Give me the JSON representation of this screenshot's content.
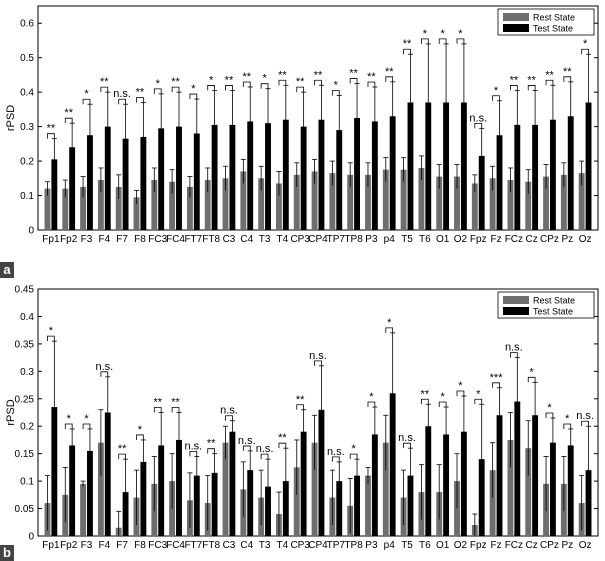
{
  "colors": {
    "rest": "#6e6e6e",
    "test": "#000000",
    "panel_tag_bg": "#444444"
  },
  "chart_data": [
    {
      "panel": "a",
      "type": "bar",
      "ylabel": "rPSD",
      "ylim": [
        0,
        0.65
      ],
      "yticks": [
        "0",
        "0.1",
        "0.2",
        "0.3",
        "0.4",
        "0.5",
        "0.6"
      ],
      "legend": [
        "Rest State",
        "Test State"
      ],
      "legend_position": "top-right",
      "categories": [
        "Fp1",
        "Fp2",
        "F3",
        "F4",
        "F7",
        "F8",
        "FC3",
        "FC4",
        "FT7",
        "FT8",
        "C3",
        "C4",
        "T3",
        "T4",
        "CP3",
        "CP4",
        "TP7",
        "TP8",
        "P3",
        "p4",
        "T5",
        "T6",
        "O1",
        "O2",
        "Fpz",
        "Fz",
        "FCz",
        "Cz",
        "CPz",
        "Pz",
        "Oz"
      ],
      "series": [
        {
          "name": "Rest State",
          "values": [
            0.12,
            0.12,
            0.125,
            0.145,
            0.125,
            0.095,
            0.145,
            0.14,
            0.125,
            0.145,
            0.15,
            0.17,
            0.15,
            0.135,
            0.16,
            0.17,
            0.165,
            0.16,
            0.16,
            0.175,
            0.175,
            0.18,
            0.155,
            0.155,
            0.135,
            0.15,
            0.145,
            0.14,
            0.155,
            0.16,
            0.165
          ],
          "errors": [
            0.02,
            0.025,
            0.03,
            0.035,
            0.035,
            0.02,
            0.035,
            0.035,
            0.03,
            0.035,
            0.035,
            0.035,
            0.035,
            0.035,
            0.035,
            0.035,
            0.035,
            0.035,
            0.035,
            0.035,
            0.035,
            0.035,
            0.035,
            0.035,
            0.025,
            0.035,
            0.035,
            0.035,
            0.035,
            0.035,
            0.035
          ]
        },
        {
          "name": "Test State",
          "values": [
            0.205,
            0.24,
            0.275,
            0.3,
            0.265,
            0.27,
            0.295,
            0.3,
            0.28,
            0.305,
            0.305,
            0.315,
            0.31,
            0.32,
            0.3,
            0.32,
            0.29,
            0.325,
            0.315,
            0.33,
            0.37,
            0.37,
            0.37,
            0.37,
            0.215,
            0.275,
            0.305,
            0.305,
            0.32,
            0.33,
            0.37
          ],
          "errors": [
            0.06,
            0.07,
            0.09,
            0.1,
            0.1,
            0.1,
            0.1,
            0.1,
            0.1,
            0.1,
            0.1,
            0.1,
            0.1,
            0.1,
            0.1,
            0.1,
            0.1,
            0.1,
            0.1,
            0.1,
            0.14,
            0.17,
            0.17,
            0.17,
            0.08,
            0.1,
            0.1,
            0.1,
            0.1,
            0.1,
            0.14
          ]
        }
      ],
      "significance": [
        "**",
        "**",
        "*",
        "**",
        "n.s.",
        "**",
        "*",
        "**",
        "*",
        "*",
        "**",
        "**",
        "*",
        "**",
        "**",
        "**",
        "*",
        "**",
        "**",
        "**",
        "**",
        "*",
        "*",
        "*",
        "n.s.",
        "*",
        "**",
        "**",
        "**",
        "**",
        "*"
      ]
    },
    {
      "panel": "b",
      "type": "bar",
      "ylabel": "rPSD",
      "ylim": [
        0,
        0.45
      ],
      "yticks": [
        "0",
        "0.05",
        "0.1",
        "0.15",
        "0.2",
        "0.25",
        "0.3",
        "0.35",
        "0.4",
        "0.45"
      ],
      "legend": [
        "Rest State",
        "Test State"
      ],
      "legend_position": "top-right",
      "categories": [
        "Fp1",
        "Fp2",
        "F3",
        "F4",
        "F7",
        "F8",
        "FC3",
        "FC4",
        "FT7",
        "FT8",
        "C3",
        "C4",
        "T3",
        "T4",
        "CP3",
        "CP4",
        "TP7",
        "TP8",
        "P3",
        "p4",
        "T5",
        "T6",
        "O1",
        "O2",
        "Fpz",
        "Fz",
        "FCz",
        "Cz",
        "CPz",
        "Pz",
        "Oz"
      ],
      "series": [
        {
          "name": "Rest State",
          "values": [
            0.06,
            0.075,
            0.095,
            0.17,
            0.015,
            0.07,
            0.095,
            0.1,
            0.065,
            0.06,
            0.17,
            0.085,
            0.07,
            0.04,
            0.125,
            0.17,
            0.07,
            0.055,
            0.11,
            0.17,
            0.07,
            0.08,
            0.08,
            0.1,
            0.02,
            0.12,
            0.175,
            0.16,
            0.095,
            0.095,
            0.06
          ],
          "errors": [
            0.05,
            0.05,
            0.005,
            0.06,
            0.03,
            0.05,
            0.05,
            0.05,
            0.05,
            0.05,
            0.03,
            0.05,
            0.05,
            0.04,
            0.05,
            0.05,
            0.05,
            0.05,
            0.015,
            0.05,
            0.05,
            0.05,
            0.05,
            0.05,
            0.02,
            0.05,
            0.05,
            0.05,
            0.05,
            0.05,
            0.05
          ]
        },
        {
          "name": "Test State",
          "values": [
            0.235,
            0.165,
            0.155,
            0.225,
            0.08,
            0.135,
            0.165,
            0.175,
            0.11,
            0.115,
            0.19,
            0.12,
            0.09,
            0.1,
            0.19,
            0.23,
            0.1,
            0.11,
            0.185,
            0.26,
            0.11,
            0.2,
            0.185,
            0.19,
            0.14,
            0.22,
            0.245,
            0.22,
            0.17,
            0.165,
            0.12
          ],
          "errors": [
            0.12,
            0.03,
            0.04,
            0.065,
            0.06,
            0.04,
            0.06,
            0.05,
            0.035,
            0.035,
            0.02,
            0.035,
            0.05,
            0.06,
            0.04,
            0.08,
            0.035,
            0.03,
            0.05,
            0.11,
            0.05,
            0.04,
            0.05,
            0.065,
            0.1,
            0.05,
            0.08,
            0.06,
            0.045,
            0.03,
            0.08
          ]
        }
      ],
      "significance": [
        "*",
        "*",
        "*",
        "n.s.",
        "**",
        "*",
        "**",
        "**",
        "n.s.",
        "**",
        "n.s.",
        "n.s.",
        "n.s.",
        "**",
        "**",
        "n.s.",
        "n.s.",
        "*",
        "*",
        "*",
        "n.s.",
        "**",
        "*",
        "*",
        "*",
        "***",
        "n.s.",
        "*",
        "*",
        "*",
        "n.s."
      ]
    }
  ],
  "panel_labels": [
    "a",
    "b"
  ]
}
